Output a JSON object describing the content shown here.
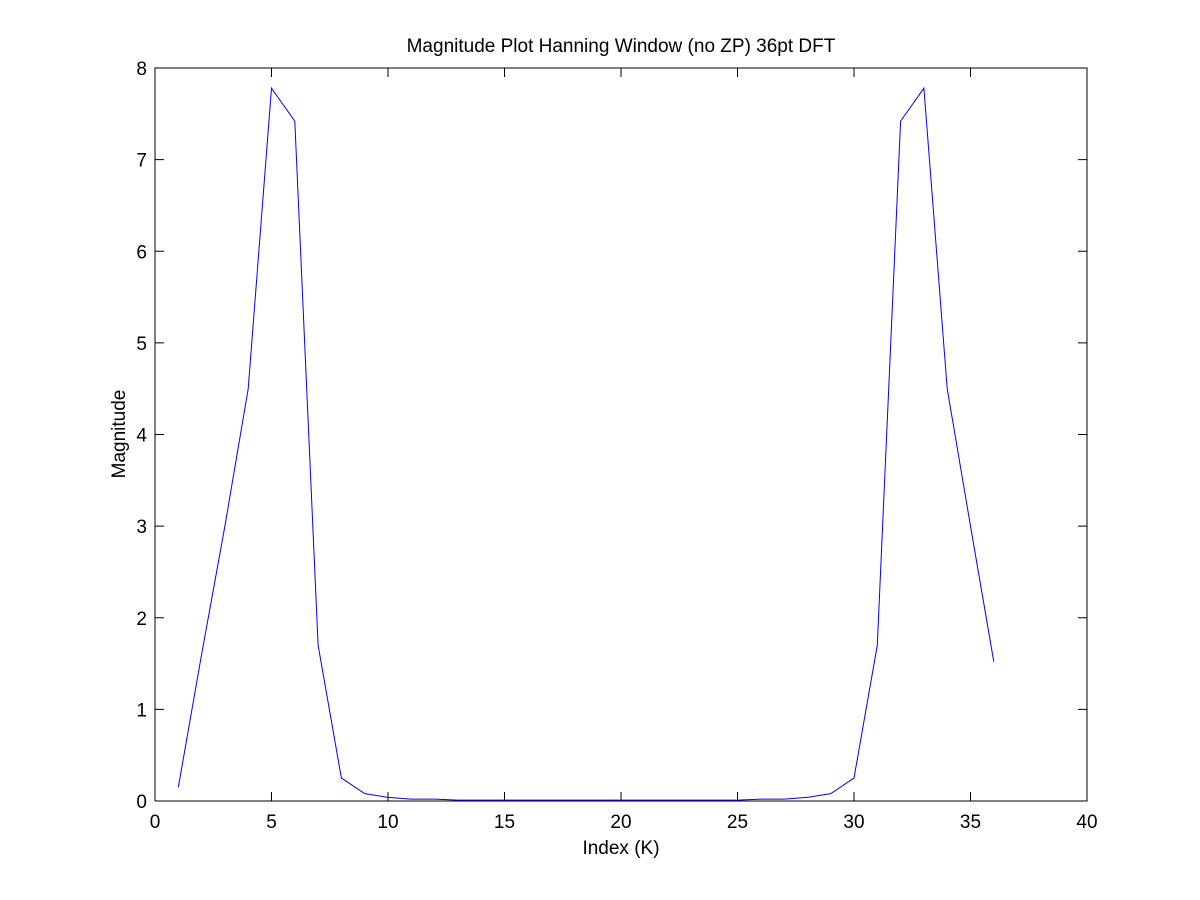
{
  "chart_data": {
    "type": "line",
    "title": "Magnitude Plot Hanning Window (no ZP) 36pt DFT",
    "xlabel": "Index (K)",
    "ylabel": "Magnitude",
    "xlim": [
      0,
      40
    ],
    "ylim": [
      0,
      8
    ],
    "x_ticks": [
      "0",
      "5",
      "10",
      "15",
      "20",
      "25",
      "30",
      "35",
      "40"
    ],
    "y_ticks": [
      "0",
      "1",
      "2",
      "3",
      "4",
      "5",
      "6",
      "7",
      "8"
    ],
    "grid": false,
    "legend": "none",
    "series": [
      {
        "color": "#0000ff",
        "x": [
          1,
          2,
          3,
          4,
          5,
          6,
          7,
          8,
          9,
          10,
          11,
          12,
          13,
          14,
          15,
          16,
          17,
          18,
          19,
          20,
          21,
          22,
          23,
          24,
          25,
          26,
          27,
          28,
          29,
          30,
          31,
          32,
          33,
          34,
          35,
          36
        ],
        "y": [
          0.15,
          1.6,
          3.0,
          4.5,
          7.78,
          7.42,
          1.7,
          0.25,
          0.08,
          0.04,
          0.02,
          0.02,
          0.01,
          0.01,
          0.01,
          0.01,
          0.01,
          0.01,
          0.01,
          0.01,
          0.01,
          0.01,
          0.01,
          0.01,
          0.01,
          0.02,
          0.02,
          0.04,
          0.08,
          0.25,
          1.7,
          7.42,
          7.78,
          4.5,
          3.0,
          1.52
        ]
      }
    ]
  }
}
